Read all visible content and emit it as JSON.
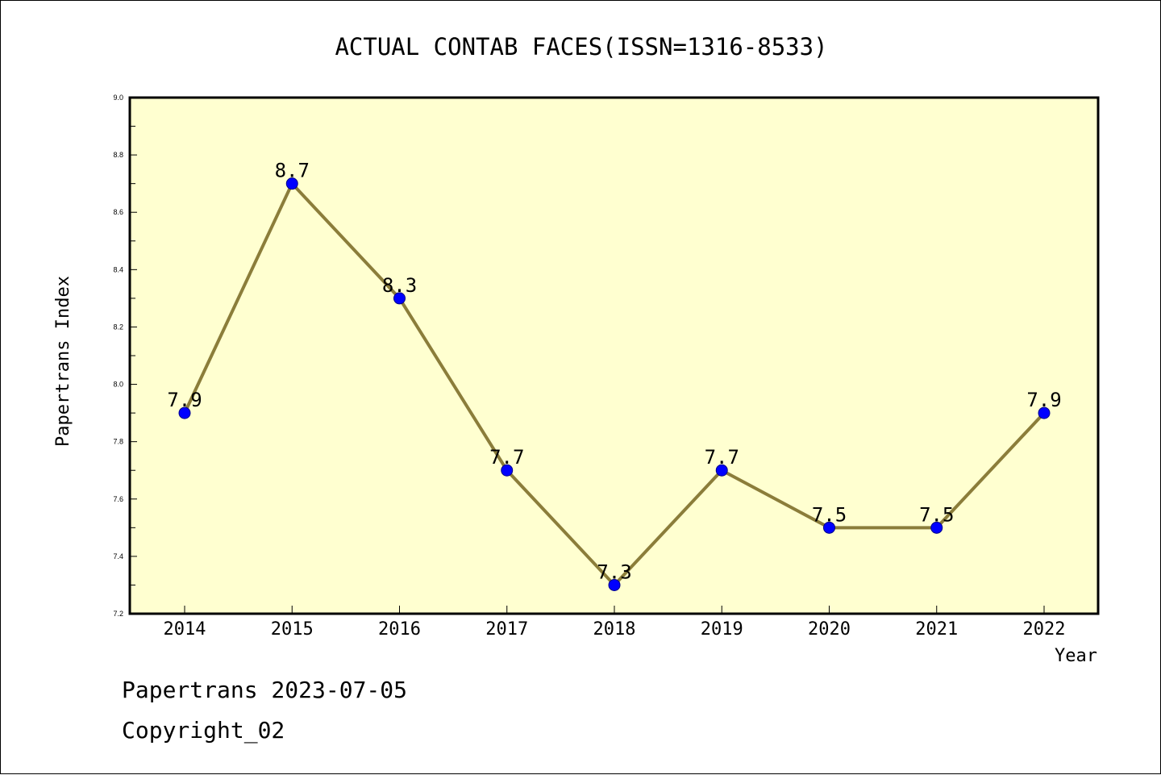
{
  "chart_data": {
    "type": "line",
    "title": "ACTUAL CONTAB FACES(ISSN=1316-8533)",
    "xlabel": "Year",
    "ylabel": "Papertrans Index",
    "x": [
      "2014",
      "2015",
      "2016",
      "2017",
      "2018",
      "2019",
      "2020",
      "2021",
      "2022"
    ],
    "values": [
      7.9,
      8.7,
      8.3,
      7.7,
      7.3,
      7.7,
      7.5,
      7.5,
      7.9
    ],
    "data_labels": [
      "7.9",
      "8.7",
      "8.3",
      "7.7",
      "7.3",
      "7.7",
      "7.5",
      "7.5",
      "7.9"
    ],
    "ylim": [
      7.2,
      9.0
    ],
    "yticks": [
      "7.2",
      "7.4",
      "7.6",
      "7.8",
      "8.0",
      "8.2",
      "8.4",
      "8.6",
      "8.8",
      "9.0"
    ],
    "grid": false,
    "colors": {
      "plot_background": "#ffffd0",
      "line": "#8b7d3a",
      "marker_fill": "#0000ff",
      "marker_edge": "#00008b"
    }
  },
  "footer": {
    "line1": "Papertrans 2023-07-05",
    "line2": "Copyright_02"
  }
}
